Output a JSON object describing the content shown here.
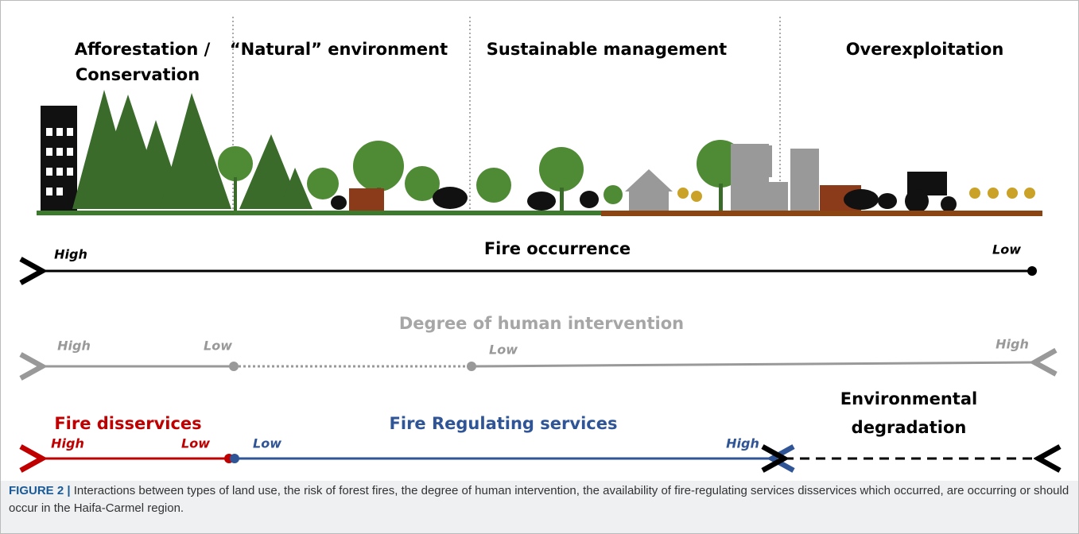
{
  "sections": [
    {
      "lines": [
        "Afforestation /",
        "Conservation"
      ]
    },
    {
      "lines": [
        "“Natural” environment"
      ]
    },
    {
      "lines": [
        "Sustainable management"
      ]
    },
    {
      "lines": [
        "Overexploitation"
      ]
    }
  ],
  "fire_occurrence": {
    "title": "Fire occurrence",
    "left": "High",
    "right": "Low"
  },
  "human_intervention": {
    "title": "Degree of human intervention",
    "labels": [
      "High",
      "Low",
      "Low",
      "High"
    ]
  },
  "fire_disservices": {
    "title": "Fire disservices",
    "left": "High",
    "right": "Low"
  },
  "fire_regulating": {
    "title": "Fire Regulating services",
    "left": "Low",
    "right": "High"
  },
  "degradation": {
    "lines": [
      "Environmental",
      "degradation"
    ]
  },
  "caption": {
    "label": "FIGURE 2 |",
    "text": "Interactions between types of land use, the risk of forest fires, the degree of human intervention, the availability of fire-regulating services disservices which occurred, are occurring or should occur in the Haifa-Carmel region."
  }
}
